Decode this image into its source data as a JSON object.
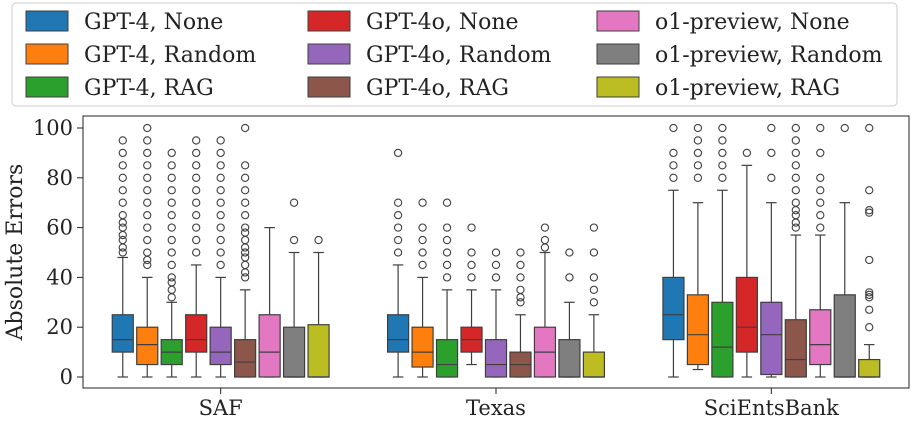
{
  "chart_data": {
    "type": "boxplot",
    "ylabel": "Absolute Errors",
    "xlabel": "",
    "ylim": [
      -5,
      105
    ],
    "yticks": [
      0,
      20,
      40,
      60,
      80,
      100
    ],
    "grid": false,
    "legend_position": "top",
    "categories": [
      "SAF",
      "Texas",
      "SciEntsBank"
    ],
    "series": [
      {
        "name": "GPT-4, None",
        "color": "#1f77b4",
        "boxes": [
          {
            "whislo": 0,
            "q1": 10,
            "med": 15,
            "q3": 25,
            "whishi": 48,
            "fliers": [
              50,
              52,
              55,
              57,
              60,
              62,
              65,
              70,
              75,
              80,
              85,
              90,
              95
            ]
          },
          {
            "whislo": 0,
            "q1": 10,
            "med": 15,
            "q3": 25,
            "whishi": 45,
            "fliers": [
              50,
              55,
              60,
              65,
              70,
              90
            ]
          },
          {
            "whislo": 0,
            "q1": 15,
            "med": 25,
            "q3": 40,
            "whishi": 75,
            "fliers": [
              80,
              85,
              90,
              100
            ]
          }
        ]
      },
      {
        "name": "GPT-4, Random",
        "color": "#ff7f0e",
        "boxes": [
          {
            "whislo": 0,
            "q1": 5,
            "med": 13,
            "q3": 20,
            "whishi": 40,
            "fliers": [
              45,
              47,
              50,
              55,
              60,
              65,
              70,
              75,
              80,
              85,
              90,
              95,
              100
            ]
          },
          {
            "whislo": 0,
            "q1": 4,
            "med": 10,
            "q3": 20,
            "whishi": 40,
            "fliers": [
              45,
              50,
              55,
              60,
              70
            ]
          },
          {
            "whislo": 3,
            "q1": 5,
            "med": 17,
            "q3": 33,
            "whishi": 70,
            "fliers": [
              80,
              85,
              90,
              95,
              100
            ]
          }
        ]
      },
      {
        "name": "GPT-4, RAG",
        "color": "#2ca02c",
        "boxes": [
          {
            "whislo": 0,
            "q1": 5,
            "med": 10,
            "q3": 15,
            "whishi": 30,
            "fliers": [
              32,
              35,
              38,
              40,
              45,
              50,
              55,
              60,
              65,
              70,
              75,
              80,
              85,
              90
            ]
          },
          {
            "whislo": 0,
            "q1": 0,
            "med": 5,
            "q3": 15,
            "whishi": 35,
            "fliers": [
              40,
              45,
              50,
              55,
              60,
              70
            ]
          },
          {
            "whislo": 0,
            "q1": 0,
            "med": 12,
            "q3": 30,
            "whishi": 75,
            "fliers": [
              80,
              85,
              90,
              95,
              100
            ]
          }
        ]
      },
      {
        "name": "GPT-4o, None",
        "color": "#d62728",
        "boxes": [
          {
            "whislo": 0,
            "q1": 10,
            "med": 15,
            "q3": 25,
            "whishi": 45,
            "fliers": [
              50,
              55,
              60,
              65,
              70,
              75,
              80,
              85,
              90,
              95
            ]
          },
          {
            "whislo": 5,
            "q1": 10,
            "med": 15,
            "q3": 20,
            "whishi": 35,
            "fliers": [
              40,
              45,
              50,
              60
            ]
          },
          {
            "whislo": 0,
            "q1": 10,
            "med": 20,
            "q3": 40,
            "whishi": 85,
            "fliers": [
              90
            ]
          }
        ]
      },
      {
        "name": "GPT-4o, Random",
        "color": "#9467bd",
        "boxes": [
          {
            "whislo": 0,
            "q1": 5,
            "med": 10,
            "q3": 20,
            "whishi": 40,
            "fliers": [
              45,
              50,
              55,
              60,
              65,
              70,
              75,
              80,
              85,
              90,
              95
            ]
          },
          {
            "whislo": 0,
            "q1": 0,
            "med": 5,
            "q3": 15,
            "whishi": 35,
            "fliers": [
              40,
              45,
              50
            ]
          },
          {
            "whislo": 0,
            "q1": 1,
            "med": 17,
            "q3": 30,
            "whishi": 70,
            "fliers": [
              80,
              90,
              100
            ]
          }
        ]
      },
      {
        "name": "GPT-4o, RAG",
        "color": "#8c564b",
        "boxes": [
          {
            "whislo": 0,
            "q1": 0,
            "med": 6,
            "q3": 15,
            "whishi": 35,
            "fliers": [
              40,
              42,
              45,
              48,
              50,
              52,
              55,
              58,
              60,
              65,
              70,
              75,
              80,
              85,
              100
            ]
          },
          {
            "whislo": 0,
            "q1": 0,
            "med": 5,
            "q3": 10,
            "whishi": 25,
            "fliers": [
              30,
              32,
              35,
              40,
              45,
              50
            ]
          },
          {
            "whislo": 0,
            "q1": 0,
            "med": 7,
            "q3": 23,
            "whishi": 57,
            "fliers": [
              60,
              62,
              65,
              67,
              70,
              75,
              80,
              85,
              90,
              95,
              100
            ]
          }
        ]
      },
      {
        "name": "o1-preview, None",
        "color": "#e377c2",
        "boxes": [
          {
            "whislo": 0,
            "q1": 0,
            "med": 10,
            "q3": 25,
            "whishi": 60,
            "fliers": []
          },
          {
            "whislo": 0,
            "q1": 0,
            "med": 10,
            "q3": 20,
            "whishi": 50,
            "fliers": [
              52,
              55,
              60
            ]
          },
          {
            "whislo": 0,
            "q1": 5,
            "med": 13,
            "q3": 27,
            "whishi": 57,
            "fliers": [
              60,
              65,
              70,
              75,
              80,
              90,
              100
            ]
          }
        ]
      },
      {
        "name": "o1-preview, Random",
        "color": "#7f7f7f",
        "boxes": [
          {
            "whislo": 0,
            "q1": 0,
            "med": 0,
            "q3": 20,
            "whishi": 50,
            "fliers": [
              55,
              70
            ]
          },
          {
            "whislo": 0,
            "q1": 0,
            "med": 0,
            "q3": 15,
            "whishi": 30,
            "fliers": [
              40,
              50
            ]
          },
          {
            "whislo": 0,
            "q1": 0,
            "med": 0,
            "q3": 33,
            "whishi": 70,
            "fliers": [
              100
            ]
          }
        ]
      },
      {
        "name": "o1-preview, RAG",
        "color": "#bcbd22",
        "boxes": [
          {
            "whislo": 0,
            "q1": 0,
            "med": 0,
            "q3": 21,
            "whishi": 50,
            "fliers": [
              55
            ]
          },
          {
            "whislo": 0,
            "q1": 0,
            "med": 0,
            "q3": 10,
            "whishi": 25,
            "fliers": [
              30,
              35,
              40,
              50,
              60
            ]
          },
          {
            "whislo": 0,
            "q1": 0,
            "med": 0,
            "q3": 7,
            "whishi": 13,
            "fliers": [
              20,
              27,
              32,
              33,
              34,
              47,
              66,
              67,
              75,
              100
            ]
          }
        ]
      }
    ]
  }
}
